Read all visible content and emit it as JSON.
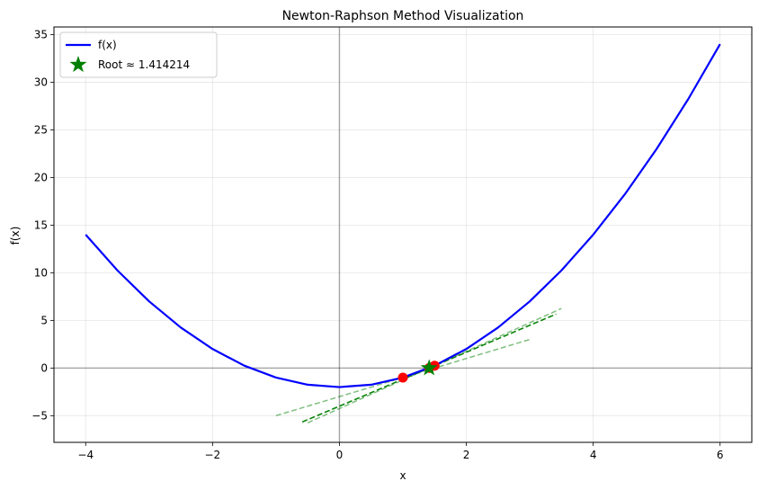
{
  "chart_data": {
    "type": "line",
    "title": "Newton-Raphson Method Visualization",
    "xlabel": "x",
    "ylabel": "f(x)",
    "xlim": [
      -4.5,
      6.5
    ],
    "ylim": [
      -7.8,
      35.8
    ],
    "xticks": [
      -4,
      -2,
      0,
      2,
      4,
      6
    ],
    "yticks": [
      -5,
      0,
      5,
      10,
      15,
      20,
      25,
      30,
      35
    ],
    "grid": true,
    "legend_position": "upper-left",
    "function": "x^2 - 2",
    "curve": {
      "name": "f(x)",
      "color": "#0000ff",
      "x": [
        -4,
        -3.5,
        -3,
        -2.5,
        -2,
        -1.5,
        -1,
        -0.5,
        0,
        0.5,
        1,
        1.5,
        2,
        2.5,
        3,
        3.5,
        4,
        4.5,
        5,
        5.5,
        6
      ],
      "y": [
        14,
        10.25,
        7,
        4.25,
        2,
        0.25,
        -1,
        -1.75,
        -2,
        -1.75,
        -1,
        0.25,
        2,
        4.25,
        7,
        10.25,
        14,
        18.25,
        23,
        28.25,
        34
      ]
    },
    "iterations": [
      {
        "x": 1.0,
        "y": -1.0
      },
      {
        "x": 1.5,
        "y": 0.25
      },
      {
        "x": 1.416667,
        "y": 0.006944
      }
    ],
    "tangent_lines": [
      {
        "x": [
          -1,
          3
        ],
        "y": [
          -5,
          3
        ],
        "style": "dashed",
        "opacity": 0.5
      },
      {
        "x": [
          -0.5,
          3.5
        ],
        "y": [
          -5.75,
          6.25
        ],
        "style": "dashed",
        "opacity": 0.5
      },
      {
        "x": [
          -0.583333,
          3.416667
        ],
        "y": [
          -5.659722,
          5.673611
        ],
        "style": "dashed",
        "opacity": 0.5
      },
      {
        "x": [
          -0.585784,
          3.414216
        ],
        "y": [
          -5.656844,
          5.656862
        ],
        "style": "dashed",
        "opacity": 0.95
      }
    ],
    "iteration_color": "#ff0000",
    "tangent_color": "#008000",
    "root": {
      "x": 1.414214,
      "y": 0,
      "color": "#008000",
      "marker": "star"
    },
    "legend": [
      {
        "label": "f(x)",
        "marker": "line",
        "color": "#0000ff"
      },
      {
        "label": "Root ≈ 1.414214",
        "marker": "star",
        "color": "#008000"
      }
    ]
  }
}
